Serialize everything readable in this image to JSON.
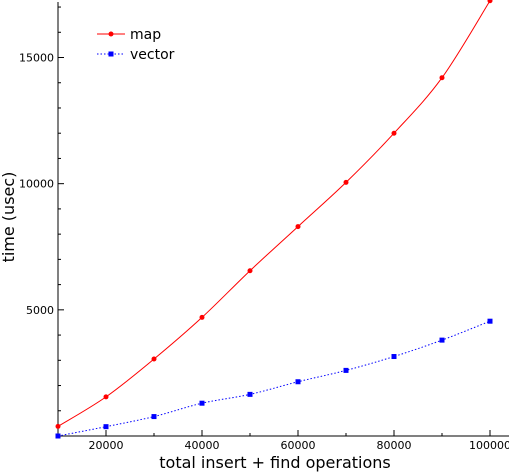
{
  "chart_data": {
    "type": "line",
    "title": "",
    "xlabel": "total insert + find operations",
    "ylabel": "time (usec)",
    "xlim": [
      10000,
      100000
    ],
    "ylim": [
      0,
      17200
    ],
    "xticks": [
      20000,
      40000,
      60000,
      80000,
      100000
    ],
    "xtick_labels": [
      "20000",
      "40000",
      "60000",
      "80000",
      "100000"
    ],
    "yticks": [
      5000,
      10000,
      15000
    ],
    "ytick_labels": [
      "5000",
      "10000",
      "15000"
    ],
    "grid": false,
    "legend": "top-left",
    "x": [
      10000,
      20000,
      30000,
      40000,
      50000,
      60000,
      70000,
      80000,
      90000,
      100000
    ],
    "series": [
      {
        "name": "map",
        "color": "#ff0000",
        "marker": "circle",
        "line": "solid",
        "values": [
          380,
          1550,
          3050,
          4700,
          6550,
          8300,
          10050,
          12000,
          14200,
          17250
        ]
      },
      {
        "name": "vector",
        "color": "#0000ff",
        "marker": "square",
        "line": "dotted",
        "values": [
          0,
          370,
          770,
          1300,
          1650,
          2150,
          2600,
          3150,
          3800,
          4550
        ]
      }
    ]
  }
}
